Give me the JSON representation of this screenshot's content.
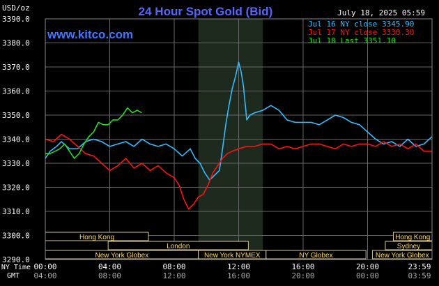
{
  "chart_data": {
    "type": "line",
    "title": "24 Hour Spot Gold (Bid)",
    "ylabel": "USD/oz",
    "date_label": "July 18, 2025 05:59",
    "watermark": "www.kitco.com",
    "ylim": [
      3290,
      3390
    ],
    "yticks": [
      "3390.0",
      "3380.0",
      "3370.0",
      "3360.0",
      "3350.0",
      "3340.0",
      "3330.0",
      "3320.0",
      "3310.0",
      "3300.0",
      "3290.0"
    ],
    "xlim_hours": [
      0,
      24
    ],
    "x_ny_label": "NY Time",
    "x_gmt_label": "GMT",
    "x_ticks_ny": [
      "00:00",
      "04:00",
      "08:00",
      "12:00",
      "16:00",
      "20:00",
      "23:59"
    ],
    "x_ticks_gmt": [
      "04:00",
      "08:00",
      "12:00",
      "16:00",
      "20:00",
      "00:00",
      "03:59"
    ],
    "legend_position": "top-right",
    "series": [
      {
        "name": "Jul 16 NY close 3345.90",
        "color": "#33bbff",
        "x": [
          0,
          0.3,
          0.7,
          1,
          1.5,
          2,
          2.5,
          3,
          3.5,
          4,
          4.5,
          5,
          5.5,
          6,
          6.5,
          7,
          7.5,
          8,
          8.5,
          9,
          9.3,
          9.6,
          9.9,
          10.2,
          10.5,
          10.8,
          11,
          11.2,
          11.4,
          11.6,
          11.8,
          12,
          12.15,
          12.3,
          12.5,
          12.7,
          13,
          13.5,
          14,
          14.5,
          15,
          15.5,
          16,
          16.5,
          17,
          17.5,
          18,
          18.5,
          19,
          19.5,
          20,
          20.5,
          21,
          21.5,
          22,
          22.5,
          23,
          23.5,
          23.99
        ],
        "values": [
          3332,
          3335,
          3337,
          3339,
          3336,
          3336,
          3339,
          3340,
          3339,
          3337,
          3338,
          3339,
          3337,
          3340,
          3338,
          3337,
          3338,
          3336,
          3333,
          3336,
          3332,
          3330,
          3326,
          3323,
          3325,
          3327,
          3336,
          3346,
          3354,
          3361,
          3366,
          3372,
          3368,
          3362,
          3348,
          3350,
          3351,
          3352,
          3354,
          3352,
          3348,
          3347,
          3347,
          3347,
          3346,
          3348,
          3350,
          3349,
          3347,
          3346,
          3343,
          3340,
          3338,
          3339,
          3337,
          3340,
          3337,
          3338,
          3341
        ]
      },
      {
        "name": "Jul 17 NY close 3330.30",
        "color": "#ff1111",
        "x": [
          0,
          0.5,
          1,
          1.5,
          2,
          2.5,
          3,
          3.5,
          4,
          4.5,
          5,
          5.5,
          6,
          6.5,
          7,
          7.5,
          8,
          8.3,
          8.6,
          8.9,
          9.2,
          9.5,
          9.8,
          10.1,
          10.4,
          10.7,
          11,
          11.3,
          11.6,
          12,
          12.5,
          13,
          13.5,
          14,
          14.5,
          15,
          15.5,
          16,
          16.5,
          17,
          17.5,
          18,
          18.5,
          19,
          19.5,
          20,
          20.5,
          21,
          21.5,
          22,
          22.5,
          23,
          23.5,
          23.99
        ],
        "values": [
          3340,
          3339,
          3342,
          3340,
          3337,
          3334,
          3333,
          3330,
          3327,
          3329,
          3332,
          3328,
          3330,
          3327,
          3329,
          3326,
          3324,
          3321,
          3315,
          3311,
          3313,
          3316,
          3317,
          3321,
          3326,
          3329,
          3332,
          3334,
          3335,
          3336,
          3337,
          3337,
          3338,
          3338,
          3336,
          3337,
          3336,
          3337,
          3338,
          3338,
          3337,
          3336,
          3338,
          3337,
          3338,
          3338,
          3337,
          3339,
          3337,
          3338,
          3336,
          3338,
          3335,
          3335
        ]
      },
      {
        "name": "Jul 18 Last 3351.10",
        "color": "#22dd22",
        "x": [
          0,
          0.3,
          0.6,
          0.9,
          1.2,
          1.5,
          1.8,
          2.1,
          2.4,
          2.7,
          3,
          3.3,
          3.6,
          3.9,
          4.2,
          4.5,
          4.8,
          5.1,
          5.4,
          5.7,
          5.98
        ],
        "values": [
          3334,
          3334,
          3335,
          3336,
          3338,
          3335,
          3332,
          3334,
          3338,
          3341,
          3343,
          3347,
          3346,
          3346,
          3348,
          3348,
          3350,
          3353,
          3351,
          3352,
          3351
        ]
      }
    ],
    "sessions": {
      "left": [
        {
          "label": "Hong Kong",
          "start": 0,
          "end": 6.4
        },
        {
          "label": "London",
          "start": 3.9,
          "end": 12.6
        },
        {
          "label": "New York Globex",
          "start": 0,
          "end": 9.5
        },
        {
          "label": "New York NYMEX",
          "start": 9.5,
          "end": 13.7
        },
        {
          "label": "NY Globex",
          "start": 13.7,
          "end": 19.9
        }
      ],
      "right": [
        {
          "label": "Hong Kong",
          "start": 21.6,
          "end": 24
        },
        {
          "label": "Sydney",
          "start": 21.1,
          "end": 24
        },
        {
          "label": "New York Globex",
          "start": 20.3,
          "end": 24
        }
      ],
      "highlight_hours": [
        9.5,
        13.5
      ]
    }
  }
}
